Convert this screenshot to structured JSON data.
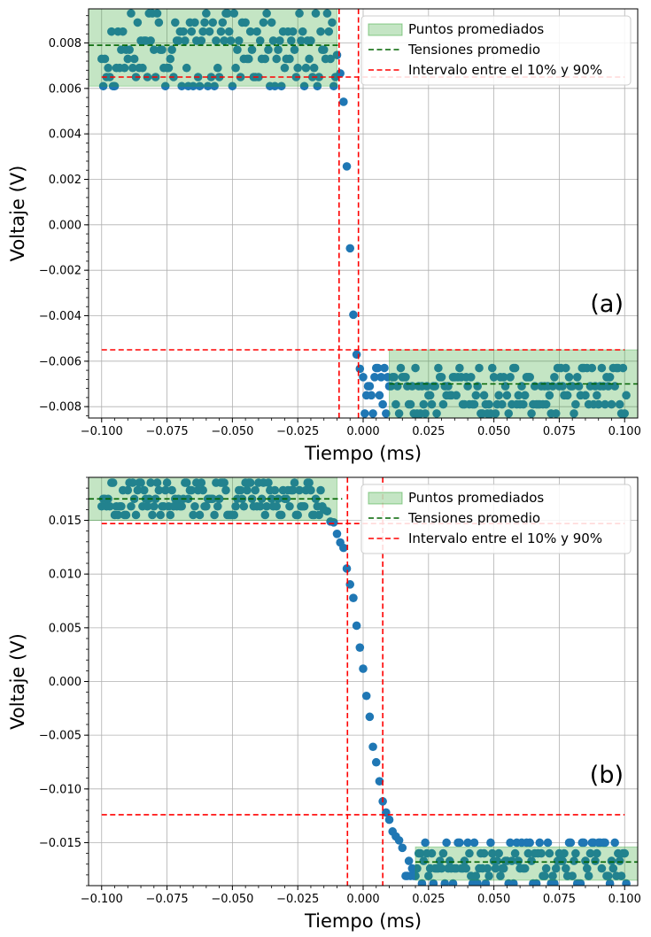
{
  "chart_data": [
    {
      "type": "scatter",
      "panel_label": "(a)",
      "xlabel": "Tiempo (ms)",
      "ylabel": "Voltaje (V)",
      "xlim": [
        -0.105,
        0.105
      ],
      "ylim": [
        -0.0085,
        0.0095
      ],
      "xticks": [
        -0.1,
        -0.075,
        -0.05,
        -0.025,
        0.0,
        0.025,
        0.05,
        0.075,
        0.1
      ],
      "xtick_labels": [
        "−0.100",
        "−0.075",
        "−0.050",
        "−0.025",
        "0.000",
        "0.025",
        "0.050",
        "0.075",
        "0.100"
      ],
      "yticks": [
        -0.008,
        -0.006,
        -0.004,
        -0.002,
        0.0,
        0.002,
        0.004,
        0.006,
        0.008
      ],
      "ytick_labels": [
        "−0.008",
        "−0.006",
        "−0.004",
        "−0.002",
        "0.000",
        "0.002",
        "0.004",
        "0.006",
        "0.008"
      ],
      "grid": true,
      "legend_position": "top-right",
      "legend": [
        "Puntos promediados",
        "Tensiones promedio",
        "Intervalo entre el 10% y 90%"
      ],
      "averaged_regions": [
        {
          "x": [
            -0.105,
            -0.01
          ],
          "y": [
            0.0061,
            0.0095
          ]
        },
        {
          "x": [
            0.01,
            0.105
          ],
          "y": [
            -0.0085,
            -0.0055
          ]
        }
      ],
      "average_voltages": [
        {
          "x": [
            -0.105,
            -0.009
          ],
          "y": 0.0079
        },
        {
          "x": [
            0.01,
            0.105
          ],
          "y": -0.007
        }
      ],
      "interval_10_90": {
        "v_high": 0.0065,
        "v_low": -0.0055,
        "t_start": -0.0092,
        "t_end": -0.0018,
        "hline_x": [
          -0.1,
          0.1
        ]
      },
      "signal": {
        "v_high": 0.0079,
        "v_low": -0.007,
        "t_center": -0.0055,
        "rise_scale": 0.0013,
        "noise_levels_high": [
          0.0061,
          0.0065,
          0.0069,
          0.0073,
          0.0077,
          0.0081,
          0.0085,
          0.0089,
          0.0093
        ],
        "noise_levels_low": [
          -0.0083,
          -0.0079,
          -0.0075,
          -0.0071,
          -0.0067,
          -0.0063
        ],
        "sample_step": 0.00125
      },
      "point_color": "#1f77b4",
      "region_color": "#2ca02c",
      "average_line_color": "#006400",
      "interval_color": "#ff0000"
    },
    {
      "type": "scatter",
      "panel_label": "(b)",
      "xlabel": "Tiempo (ms)",
      "ylabel": "Voltaje (V)",
      "xlim": [
        -0.105,
        0.105
      ],
      "ylim": [
        -0.019,
        0.019
      ],
      "xticks": [
        -0.1,
        -0.075,
        -0.05,
        -0.025,
        0.0,
        0.025,
        0.05,
        0.075,
        0.1
      ],
      "xtick_labels": [
        "−0.100",
        "−0.075",
        "−0.050",
        "−0.025",
        "0.000",
        "0.025",
        "0.050",
        "0.075",
        "0.100"
      ],
      "yticks": [
        -0.015,
        -0.01,
        -0.005,
        0.0,
        0.005,
        0.01,
        0.015
      ],
      "ytick_labels": [
        "−0.015",
        "−0.010",
        "−0.005",
        "0.000",
        "0.005",
        "0.010",
        "0.015"
      ],
      "grid": true,
      "legend_position": "top-right",
      "legend": [
        "Puntos promediados",
        "Tensiones promedio",
        "Intervalo entre el 10% y 90%"
      ],
      "averaged_regions": [
        {
          "x": [
            -0.105,
            -0.01
          ],
          "y": [
            0.015,
            0.019
          ]
        },
        {
          "x": [
            0.02,
            0.105
          ],
          "y": [
            -0.0185,
            -0.0154
          ]
        }
      ],
      "average_voltages": [
        {
          "x": [
            -0.105,
            -0.008
          ],
          "y": 0.017
        },
        {
          "x": [
            0.02,
            0.105
          ],
          "y": -0.0168
        }
      ],
      "interval_10_90": {
        "v_high": 0.0147,
        "v_low": -0.0124,
        "t_start": -0.006,
        "t_end": 0.0075,
        "hline_x": [
          -0.1,
          0.1
        ]
      },
      "signal": {
        "v_high": 0.017,
        "v_low": -0.0168,
        "t_center": 0.0005,
        "rise_scale": 0.0045,
        "noise_levels_high": [
          0.0155,
          0.0163,
          0.017,
          0.0178,
          0.0185
        ],
        "noise_levels_low": [
          -0.0188,
          -0.0181,
          -0.0174,
          -0.0167,
          -0.016,
          -0.015
        ],
        "sample_step": 0.00125
      },
      "point_color": "#1f77b4",
      "region_color": "#2ca02c",
      "average_line_color": "#006400",
      "interval_color": "#ff0000"
    }
  ]
}
